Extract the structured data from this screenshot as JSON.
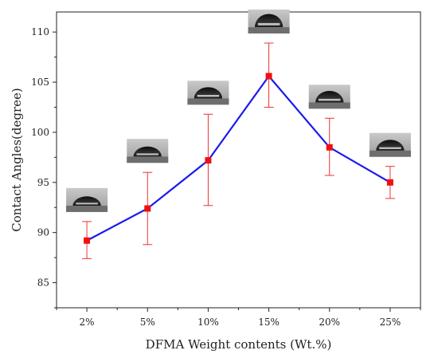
{
  "chart_data": {
    "type": "line",
    "xlabel": "DFMA Weight contents (Wt.%)",
    "ylabel": "Contact Angles(degree)",
    "categories": [
      "2%",
      "5%",
      "10%",
      "15%",
      "20%",
      "25%"
    ],
    "values": [
      89.2,
      92.4,
      97.2,
      105.6,
      98.5,
      95.0
    ],
    "error_low": [
      87.4,
      88.8,
      92.7,
      102.5,
      95.7,
      93.4
    ],
    "error_high": [
      91.1,
      96.0,
      101.8,
      108.9,
      101.4,
      96.6
    ],
    "ylim": [
      82.5,
      112
    ],
    "yticks": [
      85,
      90,
      95,
      100,
      105,
      110
    ],
    "grid": false,
    "line_color": "#1a1aee",
    "marker_color": "#ee1111",
    "error_color": "#ee3333",
    "insets": "water droplet photo above each data point"
  }
}
